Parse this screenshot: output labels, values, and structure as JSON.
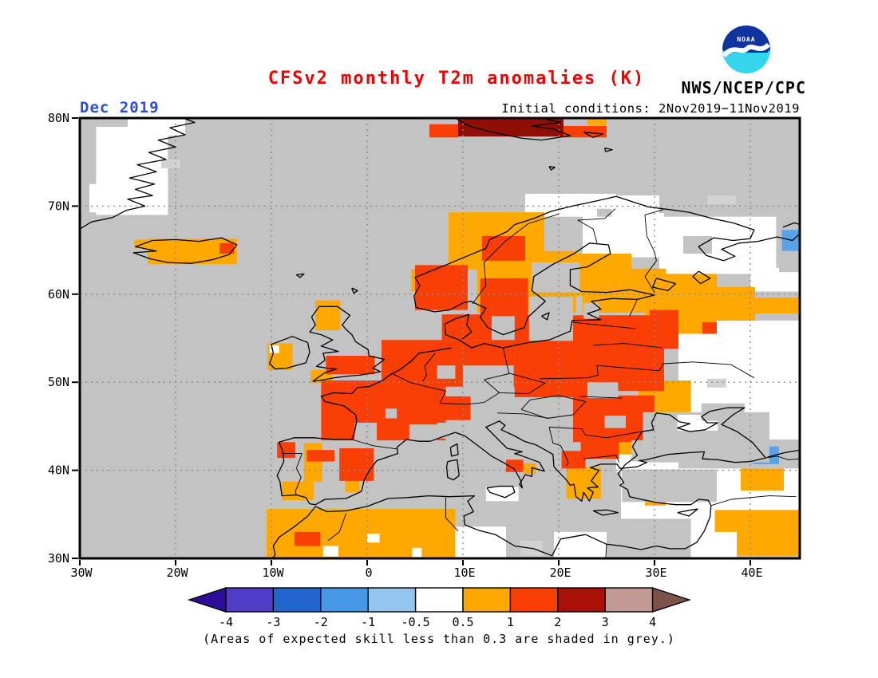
{
  "header": {
    "title": "CFSv2 monthly T2m anomalies (K)",
    "title_color": "#ee0000",
    "agency": "NWS/NCEP/CPC",
    "logo_text": "NOAA",
    "logo_colors": {
      "blue": "#1133a0",
      "cyan": "#35d5ee",
      "bird": "#ffffff"
    }
  },
  "subheader": {
    "date": "Dec 2019",
    "date_color": "#2b4fd0",
    "initial_conditions": "Initial conditions: 2Nov2019−11Nov2019"
  },
  "map": {
    "background": "#c3c3c3",
    "frame_color": "#000000",
    "gridline_color": "#8c8c8c",
    "lat_ticks": [
      {
        "v": 80,
        "label": "80N"
      },
      {
        "v": 70,
        "label": "70N"
      },
      {
        "v": 60,
        "label": "60N"
      },
      {
        "v": 50,
        "label": "50N"
      },
      {
        "v": 40,
        "label": "40N"
      },
      {
        "v": 30,
        "label": "30N"
      }
    ],
    "lon_ticks": [
      {
        "v": -30,
        "label": "30W"
      },
      {
        "v": -20,
        "label": "20W"
      },
      {
        "v": -10,
        "label": "10W"
      },
      {
        "v": 0,
        "label": "0"
      },
      {
        "v": 10,
        "label": "10E"
      },
      {
        "v": 20,
        "label": "20E"
      },
      {
        "v": 30,
        "label": "30E"
      },
      {
        "v": 40,
        "label": "40E"
      }
    ],
    "palette": {
      "w": "#ffffff",
      "o": "#ffa800",
      "r": "#f93e06",
      "d": "#8f0f05",
      "b": "#5aa2e6",
      "g": "#c3c3c3",
      "g2": "#d2d2d2"
    },
    "cells": [
      [
        -28.3,
        69,
        -20.8,
        79,
        "w"
      ],
      [
        -25,
        78,
        -19,
        80,
        "w"
      ],
      [
        -29,
        69.3,
        -27,
        72.5,
        "w"
      ],
      [
        16.5,
        68.8,
        26,
        71.4,
        "w"
      ],
      [
        26,
        68.8,
        30.5,
        71.2,
        "w"
      ],
      [
        22.5,
        64.2,
        31,
        69.2,
        "w"
      ],
      [
        30.5,
        62.3,
        42.7,
        68.8,
        "w"
      ],
      [
        40,
        60.3,
        45.2,
        63,
        "w"
      ],
      [
        32.5,
        43.5,
        45.2,
        57,
        "w"
      ],
      [
        26,
        39.8,
        32.5,
        43.5,
        "w"
      ],
      [
        26.5,
        34.5,
        45.2,
        40.2,
        "w"
      ],
      [
        9,
        30,
        14.5,
        33.6,
        "w"
      ],
      [
        19.5,
        30,
        25,
        33,
        "w"
      ],
      [
        12.4,
        36.5,
        15.8,
        38.1,
        "w"
      ],
      [
        33.8,
        30,
        38.6,
        34.5,
        "w"
      ],
      [
        16,
        30.3,
        18.3,
        32,
        "g2"
      ],
      [
        -21.5,
        74.3,
        -19.5,
        75.3,
        "g2"
      ],
      [
        35.5,
        70.2,
        38.5,
        71.2,
        "g2"
      ],
      [
        35.5,
        49.4,
        37.5,
        50.4,
        "g2"
      ],
      [
        -22.9,
        63.4,
        -13.6,
        66.3,
        "o"
      ],
      [
        -24.3,
        65.2,
        -22.9,
        66.2,
        "o"
      ],
      [
        -5.4,
        55.9,
        -2.8,
        59.3,
        "o"
      ],
      [
        -5.9,
        49.9,
        -3.6,
        51.4,
        "o"
      ],
      [
        -10.4,
        51.4,
        -7.8,
        54.4,
        "o"
      ],
      [
        -8.9,
        36.6,
        -5.6,
        38.7,
        "o"
      ],
      [
        -6.6,
        38.7,
        -4.7,
        43.1,
        "o"
      ],
      [
        -2.3,
        37.5,
        -0.8,
        38.9,
        "o"
      ],
      [
        -10.5,
        30,
        9.2,
        35.6,
        "o"
      ],
      [
        8.5,
        62.8,
        18.5,
        69.3,
        "o"
      ],
      [
        4.6,
        60.3,
        7.2,
        62.8,
        "o"
      ],
      [
        11.5,
        57.9,
        21.8,
        64.9,
        "o"
      ],
      [
        20.5,
        59.8,
        27.6,
        64.6,
        "o"
      ],
      [
        27,
        59.8,
        31.2,
        62.9,
        "o"
      ],
      [
        22.5,
        57.9,
        30.5,
        60.1,
        "o"
      ],
      [
        29,
        55.5,
        36.5,
        62.3,
        "o"
      ],
      [
        36.5,
        57,
        40.5,
        60.8,
        "o"
      ],
      [
        40.5,
        57.8,
        45.2,
        59.6,
        "o"
      ],
      [
        28.3,
        44,
        33.8,
        50.2,
        "o"
      ],
      [
        26.3,
        41.8,
        28.7,
        43.7,
        "o"
      ],
      [
        20.8,
        36.8,
        24.4,
        40.3,
        "o"
      ],
      [
        16.3,
        39.6,
        17.6,
        40.8,
        "o"
      ],
      [
        29,
        36,
        31.2,
        37.3,
        "o"
      ],
      [
        36.3,
        33,
        45.2,
        35.5,
        "o"
      ],
      [
        38.6,
        30.3,
        45.2,
        33,
        "o"
      ],
      [
        39,
        37.7,
        43.5,
        40.2,
        "o"
      ],
      [
        23,
        79.2,
        25,
        80,
        "o"
      ],
      [
        -15.4,
        64.6,
        -13.9,
        65.8,
        "r"
      ],
      [
        -4.3,
        50.9,
        0.8,
        53,
        "r"
      ],
      [
        -9.4,
        41.4,
        -7.5,
        43.2,
        "r"
      ],
      [
        -6.3,
        41,
        -3.4,
        42.3,
        "r"
      ],
      [
        -2.9,
        38.8,
        0.7,
        42.5,
        "r"
      ],
      [
        -7.6,
        31.4,
        -4.9,
        33,
        "r"
      ],
      [
        -4.8,
        43.4,
        8.2,
        50.2,
        "r"
      ],
      [
        1.5,
        49.5,
        15.4,
        54.8,
        "r"
      ],
      [
        15.4,
        48.3,
        24.5,
        54.8,
        "r"
      ],
      [
        6,
        45.7,
        10.8,
        48.4,
        "r"
      ],
      [
        15.4,
        49,
        31,
        57.6,
        "r"
      ],
      [
        7.8,
        54.8,
        13,
        57.7,
        "r"
      ],
      [
        11.8,
        57.5,
        16.8,
        61.8,
        "r"
      ],
      [
        5,
        58.2,
        10.5,
        63.3,
        "r"
      ],
      [
        12,
        63.8,
        16.5,
        66.6,
        "r"
      ],
      [
        21.5,
        43.2,
        30,
        48.5,
        "r"
      ],
      [
        22.3,
        41.3,
        26.3,
        44,
        "r"
      ],
      [
        20.3,
        40.2,
        22.8,
        42.2,
        "r"
      ],
      [
        29.5,
        53.8,
        32.5,
        58.2,
        "r"
      ],
      [
        35,
        55.5,
        36.5,
        56.8,
        "r"
      ],
      [
        14.5,
        39.8,
        16.3,
        41.2,
        "r"
      ],
      [
        6.5,
        77.8,
        9.5,
        79.3,
        "r"
      ],
      [
        20.5,
        77.8,
        25,
        79.1,
        "r"
      ],
      [
        9.5,
        77.9,
        20.5,
        80,
        "d"
      ],
      [
        43.3,
        64.9,
        45.2,
        67.3,
        "b"
      ],
      [
        38.7,
        42.7,
        41.5,
        44.7,
        "b"
      ],
      [
        40.3,
        40.7,
        43,
        42.7,
        "b"
      ],
      [
        -1.3,
        43.4,
        1,
        45.4,
        "g"
      ],
      [
        1.9,
        45.9,
        3.1,
        47,
        "g"
      ],
      [
        4.4,
        43.3,
        7.3,
        45.2,
        "g"
      ],
      [
        7.3,
        43.6,
        9.2,
        45.4,
        "g"
      ],
      [
        7.3,
        50.4,
        9.2,
        51.9,
        "g"
      ],
      [
        10,
        48.4,
        15.3,
        51.9,
        "g"
      ],
      [
        11,
        46.2,
        15.4,
        48.4,
        "g"
      ],
      [
        15.4,
        43.8,
        21.5,
        47.6,
        "g"
      ],
      [
        23,
        48.2,
        26.2,
        50,
        "g"
      ],
      [
        24.8,
        44.8,
        27,
        46.2,
        "g"
      ],
      [
        16.9,
        54.7,
        21.5,
        59.7,
        "g"
      ],
      [
        22.6,
        57.2,
        24.2,
        59,
        "g"
      ],
      [
        17.2,
        60.2,
        22.2,
        63.6,
        "g"
      ],
      [
        33,
        64.6,
        36,
        66.6,
        "g"
      ],
      [
        24,
        68.8,
        25.5,
        69.7,
        "g"
      ],
      [
        26.6,
        36.4,
        36.5,
        40.1,
        "g"
      ],
      [
        28.8,
        40.9,
        42,
        46.6,
        "g"
      ],
      [
        32.4,
        44.5,
        36.6,
        46.3,
        "w"
      ],
      [
        34.9,
        45.6,
        39.4,
        47.6,
        "g"
      ],
      [
        27.6,
        41,
        28.8,
        43.4,
        "g"
      ],
      [
        43,
        62.5,
        45.2,
        64.9,
        "g"
      ],
      [
        -10.2,
        53.3,
        -9.2,
        54.2,
        "w"
      ],
      [
        0,
        31.8,
        1.3,
        32.8,
        "w"
      ],
      [
        -4.6,
        30.2,
        -3,
        31.4,
        "w"
      ],
      [
        4.7,
        30,
        5.7,
        31.2,
        "w"
      ]
    ]
  },
  "colorbar": {
    "labels": [
      "-4",
      "-3",
      "-2",
      "-1",
      "-0.5",
      "0.5",
      "1",
      "2",
      "3",
      "4"
    ],
    "segment_colors": [
      "#4f3dc8",
      "#2166cc",
      "#4697e4",
      "#92c6ee",
      "#ffffff",
      "#ffa800",
      "#f93e06",
      "#a81008",
      "#c19a96"
    ],
    "left_arrow_color": "#2f0c9c",
    "right_arrow_color": "#7b5349"
  },
  "caption": "(Areas of expected skill less than 0.3 are shaded in grey.)"
}
